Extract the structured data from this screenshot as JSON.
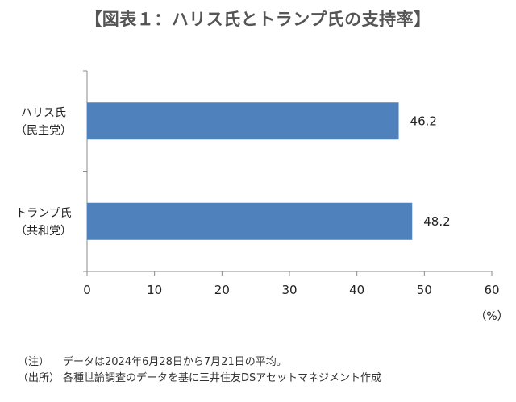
{
  "title": "【図表１：ハリス氏とトランプ氏の支持率】",
  "chart_data": {
    "type": "bar",
    "orientation": "horizontal",
    "categories": [
      {
        "line1": "ハリス氏",
        "line2": "（民主党）"
      },
      {
        "line1": "トランプ氏",
        "line2": "（共和党）"
      }
    ],
    "values": [
      46.2,
      48.2
    ],
    "value_labels": [
      "46.2",
      "48.2"
    ],
    "xlim": [
      0,
      60
    ],
    "xticks": [
      "0",
      "10",
      "20",
      "30",
      "40",
      "50",
      "60"
    ],
    "unit_label": "（%）",
    "bar_color": "#4F81BD",
    "grid": false,
    "legend": "none"
  },
  "notes": [
    {
      "tag": "（注）",
      "text": "データは2024年6月28日から7月21日の平均。"
    },
    {
      "tag": "（出所）",
      "text": "各種世論調査のデータを基に三井住友DSアセットマネジメント作成"
    }
  ]
}
